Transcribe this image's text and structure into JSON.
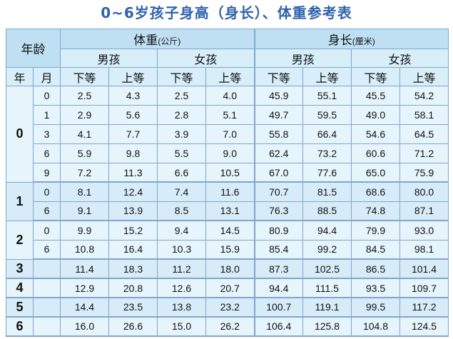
{
  "title": "0~6岁孩子身高（身长）、体重参考表",
  "header": {
    "age": "年龄",
    "weight": "体重",
    "weight_unit": "(公斤)",
    "height": "身长",
    "height_unit": "(厘米)",
    "boy": "男孩",
    "girl": "女孩",
    "year": "年",
    "month": "月",
    "low": "下等",
    "high": "上等"
  },
  "rows": [
    {
      "year": "0",
      "month": "0",
      "vals": [
        "2.5",
        "4.3",
        "2.5",
        "4.0",
        "45.9",
        "55.1",
        "45.5",
        "54.2"
      ]
    },
    {
      "year": "",
      "month": "1",
      "vals": [
        "2.9",
        "5.6",
        "2.8",
        "5.1",
        "49.7",
        "59.5",
        "49.0",
        "58.1"
      ]
    },
    {
      "year": "",
      "month": "3",
      "vals": [
        "4.1",
        "7.7",
        "3.9",
        "7.0",
        "55.8",
        "66.4",
        "54.6",
        "64.5"
      ]
    },
    {
      "year": "",
      "month": "6",
      "vals": [
        "5.9",
        "9.8",
        "5.5",
        "9.0",
        "62.4",
        "73.2",
        "60.6",
        "71.2"
      ]
    },
    {
      "year": "",
      "month": "9",
      "vals": [
        "7.2",
        "11.3",
        "6.6",
        "10.5",
        "67.0",
        "77.6",
        "65.0",
        "75.9"
      ]
    },
    {
      "year": "1",
      "month": "0",
      "vals": [
        "8.1",
        "12.4",
        "7.4",
        "11.6",
        "70.7",
        "81.5",
        "68.6",
        "80.0"
      ]
    },
    {
      "year": "",
      "month": "6",
      "vals": [
        "9.1",
        "13.9",
        "8.5",
        "13.1",
        "76.3",
        "88.5",
        "74.8",
        "87.1"
      ]
    },
    {
      "year": "2",
      "month": "0",
      "vals": [
        "9.9",
        "15.2",
        "9.4",
        "14.5",
        "80.9",
        "94.4",
        "79.9",
        "93.0"
      ]
    },
    {
      "year": "",
      "month": "6",
      "vals": [
        "10.8",
        "16.4",
        "10.3",
        "15.9",
        "85.4",
        "99.2",
        "84.5",
        "98.1"
      ]
    },
    {
      "year": "3",
      "month": "",
      "vals": [
        "11.4",
        "18.3",
        "11.2",
        "18.0",
        "87.3",
        "102.5",
        "86.5",
        "101.4"
      ]
    },
    {
      "year": "4",
      "month": "",
      "vals": [
        "12.9",
        "20.8",
        "12.6",
        "20.7",
        "94.4",
        "111.5",
        "93.5",
        "109.7"
      ]
    },
    {
      "year": "5",
      "month": "",
      "vals": [
        "14.4",
        "23.5",
        "13.8",
        "23.2",
        "100.7",
        "119.1",
        "99.5",
        "117.2"
      ]
    },
    {
      "year": "6",
      "month": "",
      "vals": [
        "16.0",
        "26.6",
        "15.0",
        "26.2",
        "106.4",
        "125.8",
        "104.8",
        "124.5"
      ]
    }
  ]
}
